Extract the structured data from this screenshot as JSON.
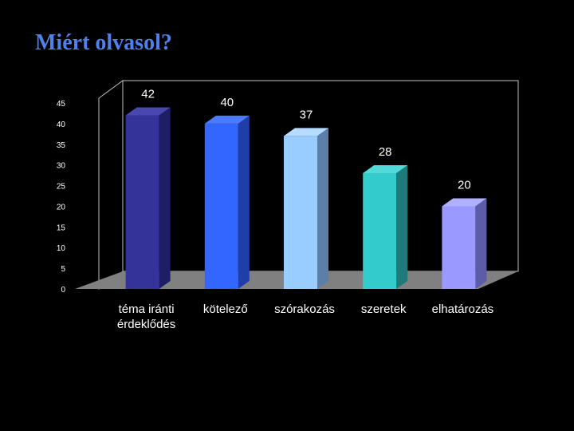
{
  "slide": {
    "title": "Miért olvasol?"
  },
  "chart_data": {
    "type": "bar",
    "categories": [
      "téma iránti\nérdeklődés",
      "kötelező",
      "szórakozás",
      "szeretek",
      "elhatározás"
    ],
    "values": [
      42,
      40,
      37,
      28,
      20
    ],
    "ylim": [
      0,
      45
    ],
    "yticks": [
      0,
      5,
      10,
      15,
      20,
      25,
      30,
      35,
      40,
      45
    ],
    "grid": false,
    "legend": "none",
    "style": "3d-column",
    "colors": [
      {
        "front": "#333399",
        "side": "#1E1E66",
        "top": "#4848B0"
      },
      {
        "front": "#3366FF",
        "side": "#1F3EAA",
        "top": "#4D7BFF"
      },
      {
        "front": "#99CCFF",
        "side": "#5C7FAA",
        "top": "#B5DBFF"
      },
      {
        "front": "#33CCCC",
        "side": "#1F7A7A",
        "top": "#50DADA"
      },
      {
        "front": "#9999FF",
        "side": "#5C5CAA",
        "top": "#B0B0FF"
      }
    ],
    "wall_color": "#000000",
    "floor_color": "#808080",
    "axis_color": "#C0C0C0",
    "label_color": "#FFFFFF"
  }
}
